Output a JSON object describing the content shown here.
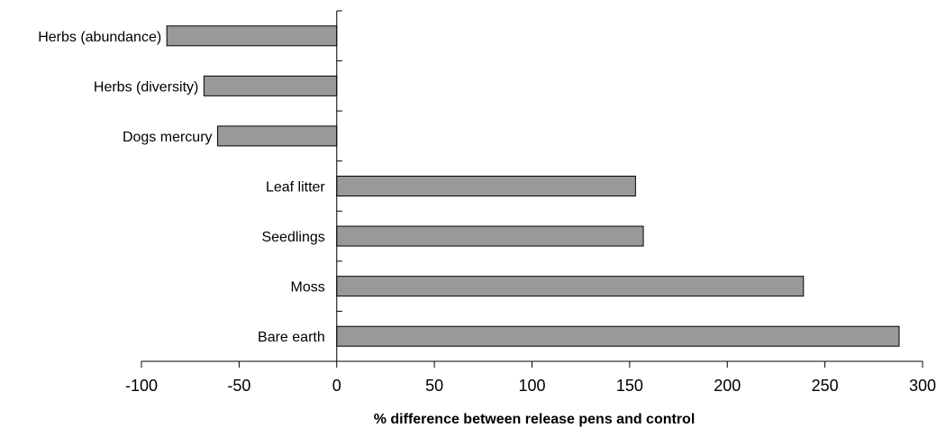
{
  "chart_data": {
    "type": "bar",
    "orientation": "horizontal",
    "categories": [
      "Herbs (abundance)",
      "Herbs (diversity)",
      "Dogs mercury",
      "Leaf litter",
      "Seedlings",
      "Moss",
      "Bare earth"
    ],
    "values": [
      -87,
      -68,
      -61,
      153,
      157,
      239,
      288
    ],
    "title": "",
    "xlabel": "% difference between release pens and control",
    "ylabel": "",
    "xlim": [
      -100,
      300
    ],
    "xticks": [
      -100,
      -50,
      0,
      50,
      100,
      150,
      200,
      250,
      300
    ],
    "bar_color": "#999999",
    "bar_border_color": "#000000",
    "grid": false,
    "legend": "none"
  }
}
